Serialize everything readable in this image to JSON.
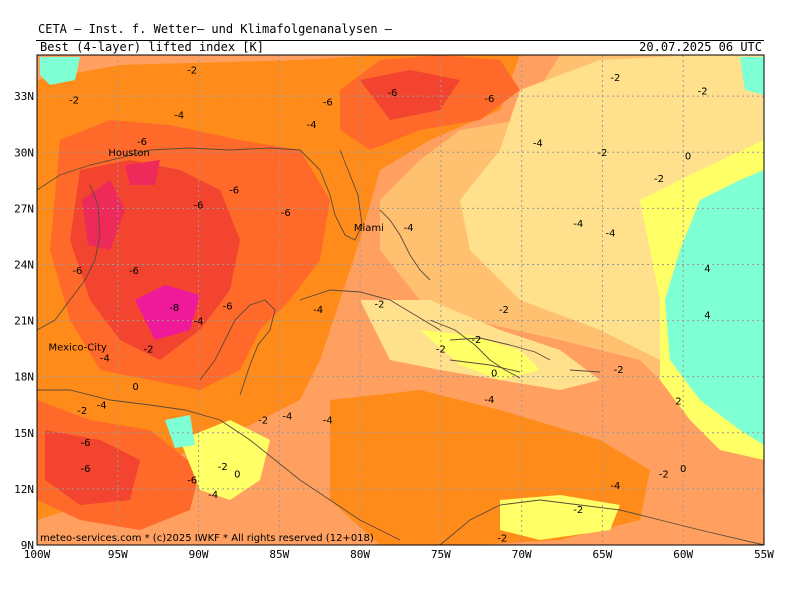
{
  "header": {
    "institute": "CETA – Inst. f. Wetter– und Klimafolgenanalysen –",
    "parameter": "Best (4-layer) lifted index [K]",
    "datetime": "20.07.2025 06 UTC"
  },
  "copyright": "meteo-services.com * (c)2025 IWKF * All rights reserved (12+018)",
  "lat_labels": [
    "33N",
    "30N",
    "27N",
    "24N",
    "21N",
    "18N",
    "15N",
    "12N",
    "9N"
  ],
  "lon_labels": [
    "100W",
    "95W",
    "90W",
    "85W",
    "80W",
    "75W",
    "70W",
    "65W",
    "60W",
    "55W"
  ],
  "cities": [
    {
      "name": "Houston",
      "lon": -95.4,
      "lat": 29.8
    },
    {
      "name": "Miami",
      "lon": -80.2,
      "lat": 25.8
    },
    {
      "name": "Mexico-City",
      "lon": -99.1,
      "lat": 19.4
    }
  ],
  "contour_labels": [
    {
      "t": "-2",
      "lon": -90.4,
      "lat": 34.2
    },
    {
      "t": "-2",
      "lon": -97.7,
      "lat": 32.6
    },
    {
      "t": "-4",
      "lon": -91.2,
      "lat": 31.8
    },
    {
      "t": "-6",
      "lon": -93.5,
      "lat": 30.4
    },
    {
      "t": "-6",
      "lon": -82.0,
      "lat": 32.5
    },
    {
      "t": "-6",
      "lon": -78.0,
      "lat": 33.0
    },
    {
      "t": "-6",
      "lon": -72.0,
      "lat": 32.7
    },
    {
      "t": "-4",
      "lon": -83.0,
      "lat": 31.3
    },
    {
      "t": "-2",
      "lon": -64.2,
      "lat": 33.8
    },
    {
      "t": "-2",
      "lon": -58.8,
      "lat": 33.1
    },
    {
      "t": "-4",
      "lon": -69.0,
      "lat": 30.3
    },
    {
      "t": "-2",
      "lon": -65.0,
      "lat": 29.8
    },
    {
      "t": "0",
      "lon": -59.7,
      "lat": 29.6
    },
    {
      "t": "-2",
      "lon": -61.5,
      "lat": 28.4
    },
    {
      "t": "-6",
      "lon": -87.8,
      "lat": 27.8
    },
    {
      "t": "-6",
      "lon": -90.0,
      "lat": 27.0
    },
    {
      "t": "-6",
      "lon": -84.6,
      "lat": 26.6
    },
    {
      "t": "-4",
      "lon": -66.5,
      "lat": 26.0
    },
    {
      "t": "-4",
      "lon": -64.5,
      "lat": 25.5
    },
    {
      "t": "-4",
      "lon": -77.0,
      "lat": 25.8
    },
    {
      "t": "-6",
      "lon": -97.5,
      "lat": 23.5
    },
    {
      "t": "-6",
      "lon": -94.0,
      "lat": 23.5
    },
    {
      "t": "-6",
      "lon": -88.2,
      "lat": 21.6
    },
    {
      "t": "-8",
      "lon": -91.5,
      "lat": 21.5
    },
    {
      "t": "-4",
      "lon": -90.0,
      "lat": 20.8
    },
    {
      "t": "-4",
      "lon": -82.6,
      "lat": 21.4
    },
    {
      "t": "-2",
      "lon": -78.8,
      "lat": 21.7
    },
    {
      "t": "-2",
      "lon": -71.1,
      "lat": 21.4
    },
    {
      "t": "-2",
      "lon": -72.8,
      "lat": 19.8
    },
    {
      "t": "-2",
      "lon": -75.0,
      "lat": 19.3
    },
    {
      "t": "-2",
      "lon": -93.1,
      "lat": 19.3
    },
    {
      "t": "-4",
      "lon": -95.8,
      "lat": 18.8
    },
    {
      "t": "0",
      "lon": -71.7,
      "lat": 18.0
    },
    {
      "t": "-2",
      "lon": -64.0,
      "lat": 18.2
    },
    {
      "t": "0",
      "lon": -93.9,
      "lat": 17.3
    },
    {
      "t": "-4",
      "lon": -96.0,
      "lat": 16.3
    },
    {
      "t": "-2",
      "lon": -97.2,
      "lat": 16.0
    },
    {
      "t": "-4",
      "lon": -72.0,
      "lat": 16.6
    },
    {
      "t": "-4",
      "lon": -84.5,
      "lat": 15.7
    },
    {
      "t": "-4",
      "lon": -82.0,
      "lat": 15.5
    },
    {
      "t": "-2",
      "lon": -86.0,
      "lat": 15.5
    },
    {
      "t": "2",
      "lon": -60.3,
      "lat": 16.5
    },
    {
      "t": "4",
      "lon": -58.5,
      "lat": 23.6
    },
    {
      "t": "4",
      "lon": -58.5,
      "lat": 21.1
    },
    {
      "t": "-6",
      "lon": -97.0,
      "lat": 14.3
    },
    {
      "t": "-6",
      "lon": -97.0,
      "lat": 12.9
    },
    {
      "t": "-2",
      "lon": -88.5,
      "lat": 13.0
    },
    {
      "t": "0",
      "lon": -87.6,
      "lat": 12.6
    },
    {
      "t": "-6",
      "lon": -90.4,
      "lat": 12.3
    },
    {
      "t": "-4",
      "lon": -89.1,
      "lat": 11.5
    },
    {
      "t": "-2",
      "lon": -61.2,
      "lat": 12.6
    },
    {
      "t": "0",
      "lon": -60.0,
      "lat": 12.9
    },
    {
      "t": "-4",
      "lon": -64.2,
      "lat": 12.0
    },
    {
      "t": "-2",
      "lon": -66.5,
      "lat": 10.7
    },
    {
      "t": "-2",
      "lon": -71.2,
      "lat": 9.2
    }
  ],
  "colors": {
    "c_pos2": "#7fffd4",
    "c_0": "#ffff66",
    "c_m1": "#ffe08c",
    "c_m2": "#ffc070",
    "c_m3": "#ffa060",
    "c_m4": "#ff8c1a",
    "c_m5": "#ff6a2a",
    "c_m6": "#f2442e",
    "c_m7": "#ee2a5a",
    "c_m8": "#ee1a9a"
  }
}
